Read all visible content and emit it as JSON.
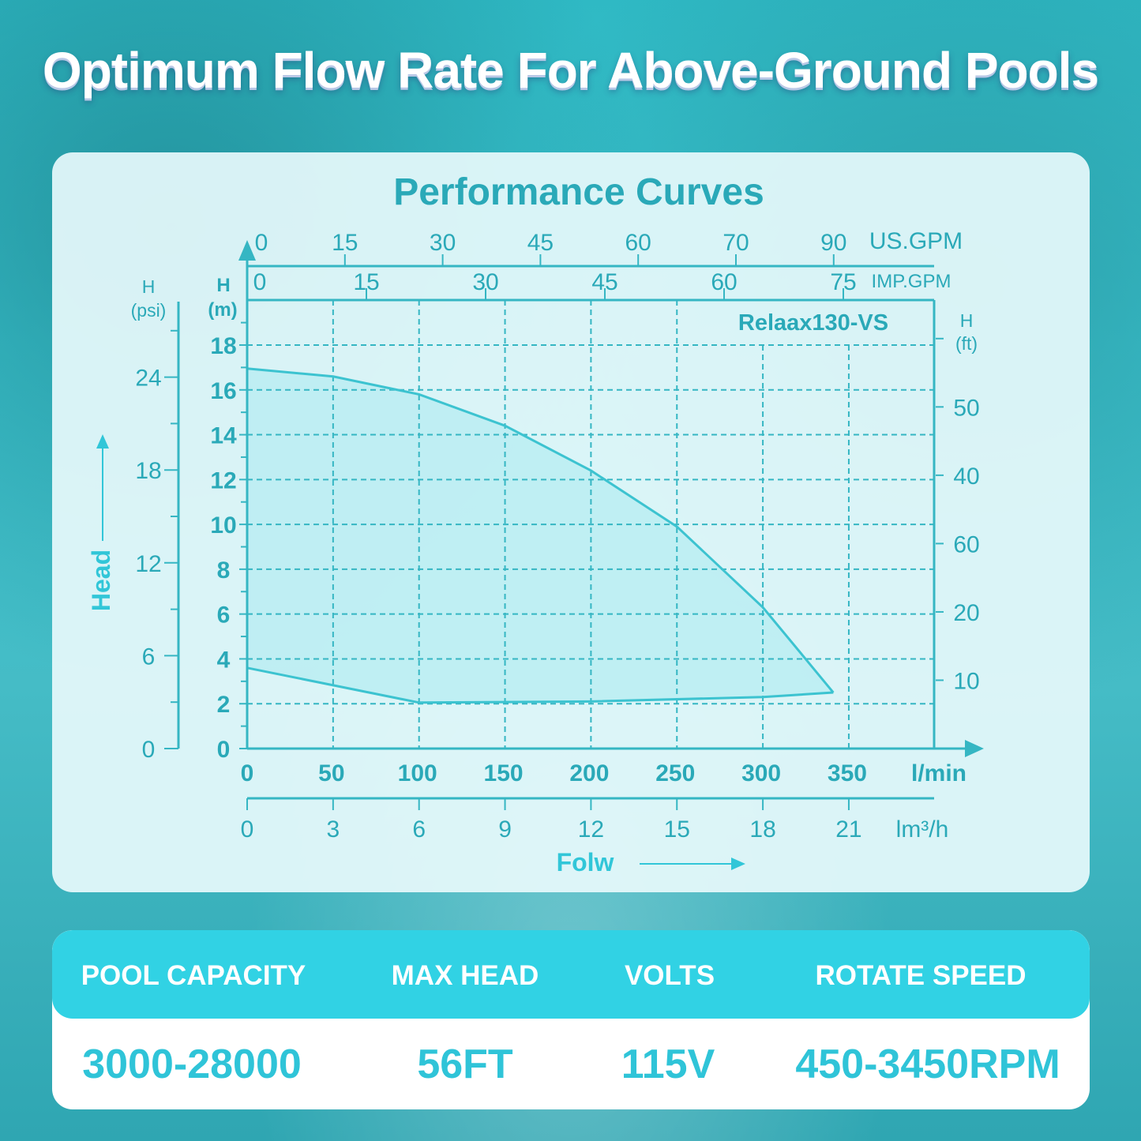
{
  "page_title": "Optimum Flow Rate For Above-Ground Pools",
  "colors": {
    "accent": "#31d2e4",
    "axis": "#35b6c3",
    "label": "#2aa9b8",
    "fill": "#b6ecf2"
  },
  "chart_data": {
    "type": "area",
    "title": "Performance Curves",
    "model_label": "Relaax130-VS",
    "grid": true,
    "x_axis": {
      "label": "l/min",
      "range": [
        0,
        400
      ],
      "ticks": [
        0,
        50,
        100,
        150,
        200,
        250,
        300,
        350
      ]
    },
    "x_axis_m3h": {
      "label": "lm³/h",
      "ticks": [
        "0",
        "3",
        "6",
        "9",
        "12",
        "15",
        "18",
        "21"
      ]
    },
    "x_axis_us_gpm": {
      "label": "US.GPM",
      "ticks": [
        "0",
        "15",
        "30",
        "45",
        "60",
        "70",
        "90"
      ]
    },
    "x_axis_imp_gpm": {
      "label": "IMP.GPM",
      "ticks": [
        "0",
        "15",
        "30",
        "45",
        "60",
        "75"
      ]
    },
    "y_axis_m": {
      "label": "H\n(m)",
      "range": [
        0,
        20
      ],
      "ticks": [
        0,
        2,
        4,
        6,
        8,
        10,
        12,
        14,
        16,
        18
      ]
    },
    "y_axis_psi": {
      "label": "H\n(psi)",
      "ticks": [
        0,
        6,
        12,
        18,
        24
      ]
    },
    "y_axis_ft": {
      "label": "H\n(ft)",
      "ticks_bottom_up": [
        "10",
        "20",
        "60",
        "40",
        "50",
        ""
      ]
    },
    "y_title": "Head",
    "x_title": "Folw",
    "series": [
      {
        "role": "upper",
        "x": [
          0,
          50,
          100,
          150,
          200,
          250,
          300,
          341
        ],
        "y": [
          16.95,
          16.6,
          15.8,
          14.4,
          12.4,
          9.9,
          6.3,
          2.5
        ]
      },
      {
        "role": "lower",
        "x": [
          0,
          100,
          200,
          300,
          341
        ],
        "y": [
          3.6,
          2.05,
          2.1,
          2.3,
          2.5
        ]
      }
    ]
  },
  "specs": {
    "headers": [
      "POOL CAPACITY",
      "MAX HEAD",
      "VOLTS",
      "ROTATE SPEED"
    ],
    "values": [
      "3000-28000",
      "56FT",
      "115V",
      "450-3450RPM"
    ]
  }
}
